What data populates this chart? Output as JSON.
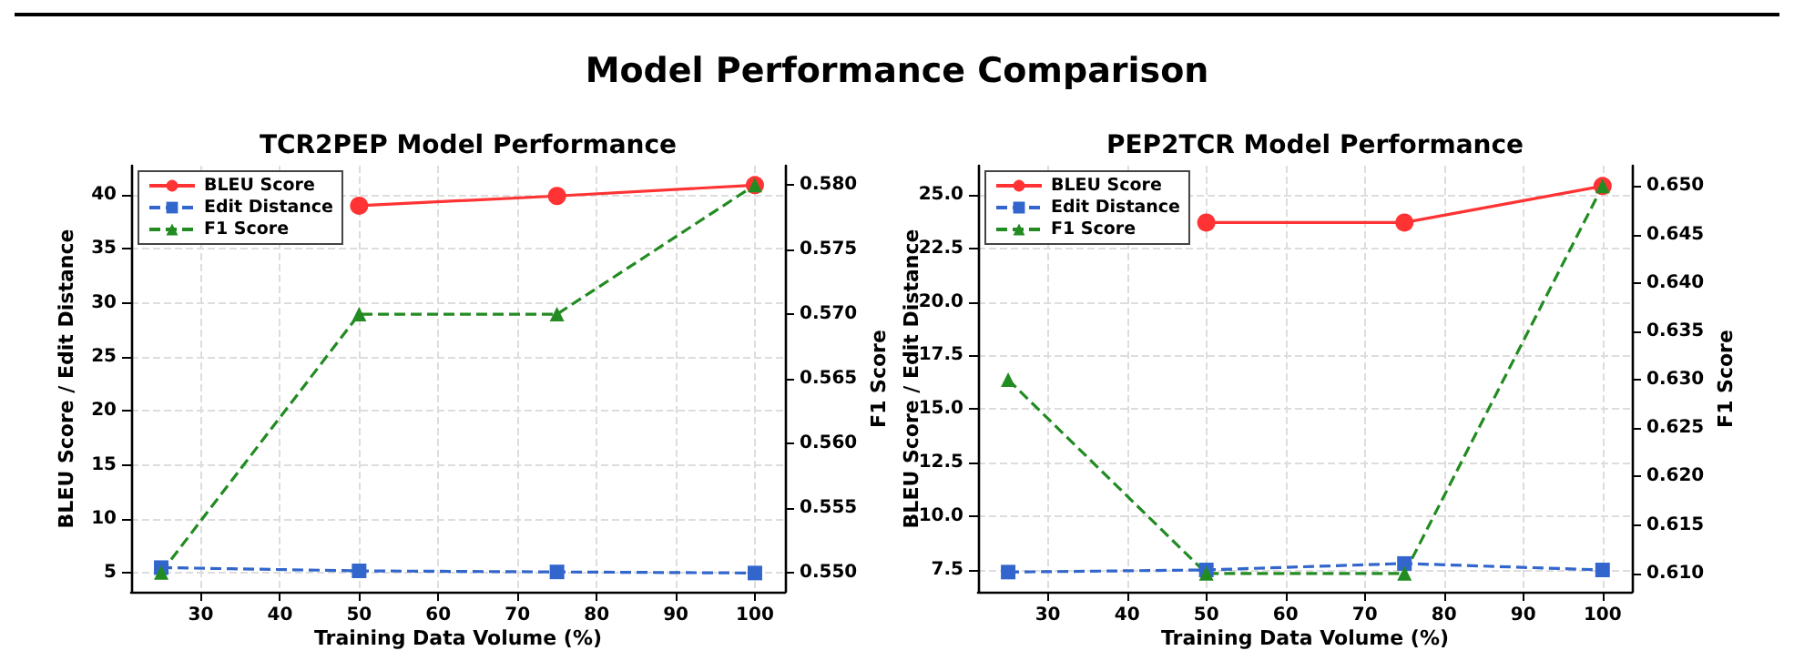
{
  "chart_data": [
    {
      "type": "line",
      "title": "TCR2PEP Model Performance",
      "annotations": [
        "Model Performance Comparison"
      ],
      "xlabel": "Training Data Volume (%)",
      "ylabel": "BLEU Score / Edit Distance",
      "y2label": "F1 Score",
      "x": [
        25,
        50,
        75,
        100
      ],
      "xlim": [
        21.2,
        103.8
      ],
      "xticks": [
        30,
        40,
        50,
        60,
        70,
        80,
        90,
        100
      ],
      "ylim": [
        3.26,
        42.7
      ],
      "yticks": [
        5,
        10,
        15,
        20,
        25,
        30,
        35,
        40
      ],
      "y2lim": [
        0.5485,
        0.5815
      ],
      "y2ticks": [
        {
          "value": 0.55,
          "label": "0.550"
        },
        {
          "value": 0.555,
          "label": "0.555"
        },
        {
          "value": 0.56,
          "label": "0.560"
        },
        {
          "value": 0.565,
          "label": "0.565"
        },
        {
          "value": 0.57,
          "label": "0.570"
        },
        {
          "value": 0.575,
          "label": "0.575"
        },
        {
          "value": 0.58,
          "label": "0.580"
        }
      ],
      "grid": true,
      "legend": "top left",
      "series": [
        {
          "name": "BLEU Score",
          "color": "#ff3333",
          "marker": "circle",
          "line_style": "solid",
          "values": [
            null,
            39.0,
            39.9,
            40.9
          ]
        },
        {
          "name": "Edit Distance",
          "color": "#3366cc",
          "marker": "square",
          "line_style": "dashed",
          "values": [
            5.5,
            5.2,
            5.1,
            5.0
          ]
        },
        {
          "name": "F1 Score",
          "color": "#228b22",
          "marker": "triangle",
          "line_style": "dashed",
          "axis": "y2",
          "values": [
            0.55,
            0.57,
            0.57,
            0.58
          ]
        }
      ]
    },
    {
      "type": "line",
      "title": "PEP2TCR Model Performance",
      "xlabel": "Training Data Volume (%)",
      "ylabel": "BLEU Score / Edit Distance",
      "y2label": "F1 Score",
      "x": [
        25,
        50,
        75,
        100
      ],
      "xlim": [
        21.2,
        103.7
      ],
      "xticks": [
        30,
        40,
        50,
        60,
        70,
        80,
        90,
        100
      ],
      "ylim": [
        6.48,
        26.35
      ],
      "yticks": [
        7.5,
        {
          "value": 10,
          "label": "10.0"
        },
        12.5,
        {
          "value": 15,
          "label": "15.0"
        },
        17.5,
        {
          "value": 20,
          "label": "20.0"
        },
        22.5,
        {
          "value": 25,
          "label": "25.0"
        }
      ],
      "y2lim": [
        0.6081,
        0.6521
      ],
      "y2ticks": [
        {
          "value": 0.61,
          "label": "0.610"
        },
        0.615,
        {
          "value": 0.62,
          "label": "0.620"
        },
        0.625,
        {
          "value": 0.63,
          "label": "0.630"
        },
        0.635,
        {
          "value": 0.64,
          "label": "0.640"
        },
        0.645,
        {
          "value": 0.65,
          "label": "0.650"
        }
      ],
      "grid": true,
      "legend": "top left",
      "series": [
        {
          "name": "BLEU Score",
          "color": "#ff3333",
          "marker": "circle",
          "line_style": "solid",
          "values": [
            null,
            23.7,
            23.7,
            25.4
          ]
        },
        {
          "name": "Edit Distance",
          "color": "#3366cc",
          "marker": "square",
          "line_style": "dashed",
          "values": [
            7.4,
            7.5,
            7.8,
            7.5
          ]
        },
        {
          "name": "F1 Score",
          "color": "#228b22",
          "marker": "triangle",
          "line_style": "dashed",
          "axis": "y2",
          "values": [
            0.63,
            0.61,
            0.61,
            0.65
          ]
        }
      ]
    }
  ]
}
